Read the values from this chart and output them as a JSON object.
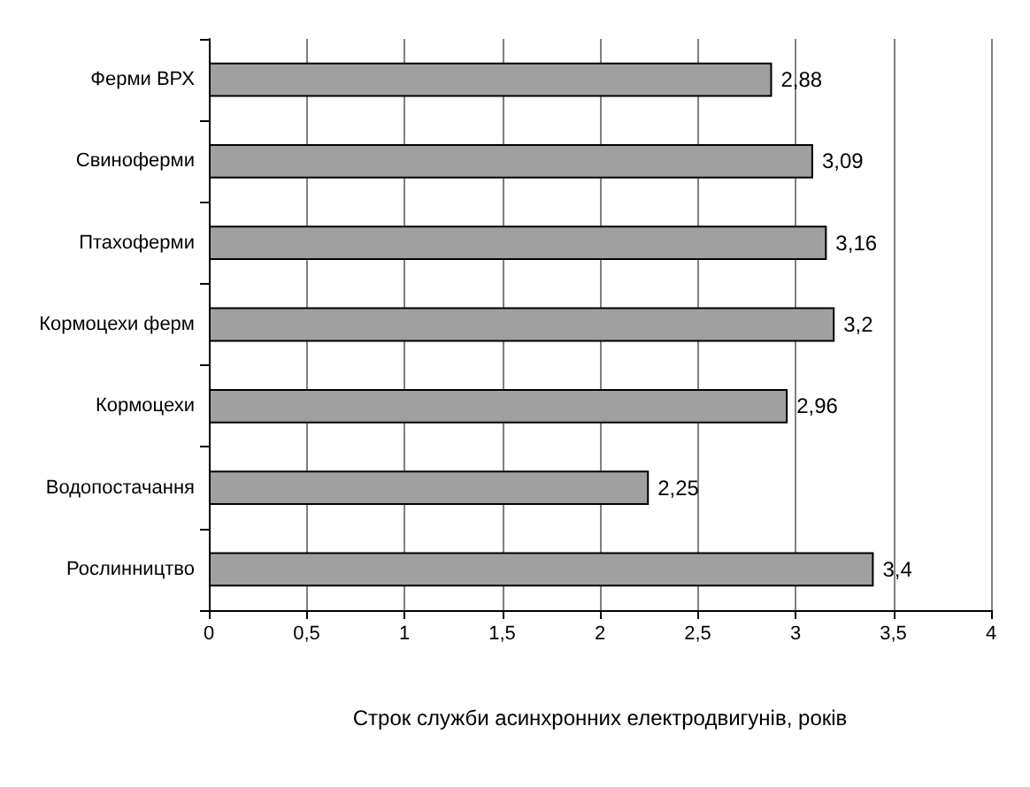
{
  "chart_data": {
    "type": "bar",
    "orientation": "horizontal",
    "xlabel": "Строк служби асинхронних електродвигунів, років",
    "categories": [
      "Ферми ВРХ",
      "Свиноферми",
      "Птахоферми",
      "Кормоцехи ферм",
      "Кормоцехи",
      "Водопостачання",
      "Рослинництво"
    ],
    "values": [
      2.88,
      3.09,
      3.16,
      3.2,
      2.96,
      2.25,
      3.4
    ],
    "value_labels": [
      "2,88",
      "3,09",
      "3,16",
      "3,2",
      "2,96",
      "2,25",
      "3,4"
    ],
    "color": "#a0a0a0",
    "xlim": [
      0,
      4
    ],
    "xticks": [
      0,
      {
        "value": 0.5,
        "label": "0,5"
      },
      1,
      {
        "value": 1.5,
        "label": "1,5"
      },
      2,
      {
        "value": 2.5,
        "label": "2,5"
      },
      3,
      {
        "value": 3.5,
        "label": "3,5"
      },
      4
    ],
    "grid": "x"
  }
}
